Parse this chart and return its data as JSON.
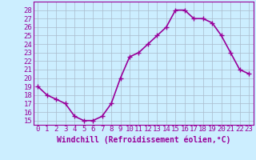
{
  "x": [
    0,
    1,
    2,
    3,
    4,
    5,
    6,
    7,
    8,
    9,
    10,
    11,
    12,
    13,
    14,
    15,
    16,
    17,
    18,
    19,
    20,
    21,
    22,
    23
  ],
  "y": [
    19,
    18,
    17.5,
    17,
    15.5,
    15,
    15,
    15.5,
    17,
    20,
    22.5,
    23,
    24,
    25,
    26,
    28,
    28,
    27,
    27,
    26.5,
    25,
    23,
    21,
    20.5
  ],
  "line_color": "#990099",
  "marker": "+",
  "marker_size": 4,
  "bg_color": "#cceeff",
  "grid_color": "#aabbcc",
  "xlabel": "Windchill (Refroidissement éolien,°C)",
  "xlabel_fontsize": 7,
  "ylim": [
    14.5,
    29
  ],
  "xlim": [
    -0.5,
    23.5
  ],
  "yticks": [
    15,
    16,
    17,
    18,
    19,
    20,
    21,
    22,
    23,
    24,
    25,
    26,
    27,
    28
  ],
  "xticks": [
    0,
    1,
    2,
    3,
    4,
    5,
    6,
    7,
    8,
    9,
    10,
    11,
    12,
    13,
    14,
    15,
    16,
    17,
    18,
    19,
    20,
    21,
    22,
    23
  ],
  "tick_fontsize": 6.5,
  "line_width": 1.2
}
